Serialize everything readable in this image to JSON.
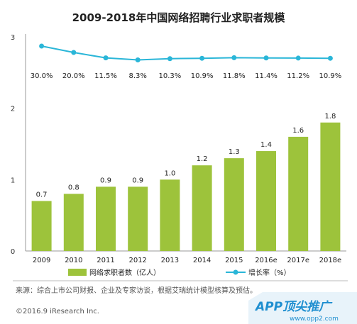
{
  "chart_data": {
    "type": "bar",
    "title": "2009-2018年中国网络招聘行业求职者规模",
    "categories": [
      "2009",
      "2010",
      "2011",
      "2012",
      "2013",
      "2014",
      "2015",
      "2016e",
      "2017e",
      "2018e"
    ],
    "ylim": [
      0,
      3
    ],
    "y_ticks": [
      "0",
      "1",
      "2",
      "3"
    ],
    "grid": false,
    "legend_position": "bottom",
    "series": [
      {
        "name": "网络求职者数（亿人）",
        "type": "bar",
        "values": [
          0.7,
          0.8,
          0.9,
          0.9,
          1.0,
          1.2,
          1.3,
          1.4,
          1.6,
          1.8
        ],
        "labels": [
          "0.7",
          "0.8",
          "0.9",
          "0.9",
          "1.0",
          "1.2",
          "1.3",
          "1.4",
          "1.6",
          "1.8"
        ],
        "color": "#9dc33b"
      },
      {
        "name": "增长率（%）",
        "type": "line",
        "values": [
          30.0,
          20.0,
          11.5,
          8.3,
          10.3,
          10.9,
          11.8,
          11.4,
          11.2,
          10.9
        ],
        "labels": [
          "30.0%",
          "20.0%",
          "11.5%",
          "8.3%",
          "10.3%",
          "10.9%",
          "11.8%",
          "11.4%",
          "11.2%",
          "10.9%"
        ],
        "color": "#2ab6d8"
      }
    ]
  },
  "source_note": "来源：综合上市公司财报、企业及专家访谈，根据艾瑞统计模型核算及预估。",
  "copyright": "©2016.9 iResearch Inc.",
  "watermark": {
    "brand": "APP顶尖推广",
    "url": "www.opp2.com"
  }
}
